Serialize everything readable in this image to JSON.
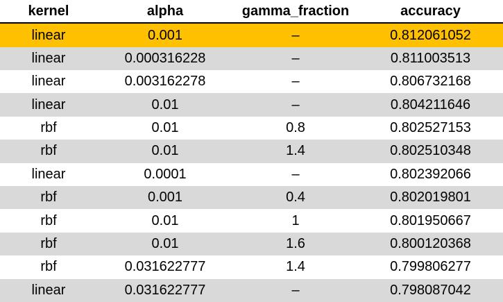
{
  "table": {
    "columns": [
      "kernel",
      "alpha",
      "gamma_fraction",
      "accuracy"
    ],
    "rows": [
      {
        "kernel": "linear",
        "alpha": "0.001",
        "gamma_fraction": "–",
        "accuracy": "0.812061052",
        "highlighted": true
      },
      {
        "kernel": "linear",
        "alpha": "0.000316228",
        "gamma_fraction": "–",
        "accuracy": "0.811003513"
      },
      {
        "kernel": "linear",
        "alpha": "0.003162278",
        "gamma_fraction": "–",
        "accuracy": "0.806732168"
      },
      {
        "kernel": "linear",
        "alpha": "0.01",
        "gamma_fraction": "–",
        "accuracy": "0.804211646"
      },
      {
        "kernel": "rbf",
        "alpha": "0.01",
        "gamma_fraction": "0.8",
        "accuracy": "0.802527153"
      },
      {
        "kernel": "rbf",
        "alpha": "0.01",
        "gamma_fraction": "1.4",
        "accuracy": "0.802510348"
      },
      {
        "kernel": "linear",
        "alpha": "0.0001",
        "gamma_fraction": "–",
        "accuracy": "0.802392066"
      },
      {
        "kernel": "rbf",
        "alpha": "0.001",
        "gamma_fraction": "0.4",
        "accuracy": "0.802019801"
      },
      {
        "kernel": "rbf",
        "alpha": "0.01",
        "gamma_fraction": "1",
        "accuracy": "0.801950667"
      },
      {
        "kernel": "rbf",
        "alpha": "0.01",
        "gamma_fraction": "1.6",
        "accuracy": "0.800120368"
      },
      {
        "kernel": "rbf",
        "alpha": "0.031622777",
        "gamma_fraction": "1.4",
        "accuracy": "0.799806277"
      },
      {
        "kernel": "linear",
        "alpha": "0.031622777",
        "gamma_fraction": "–",
        "accuracy": "0.798087042"
      }
    ]
  },
  "colors": {
    "highlight": "#ffc000",
    "band_grey": "#d9d9d9",
    "band_white": "#ffffff"
  }
}
